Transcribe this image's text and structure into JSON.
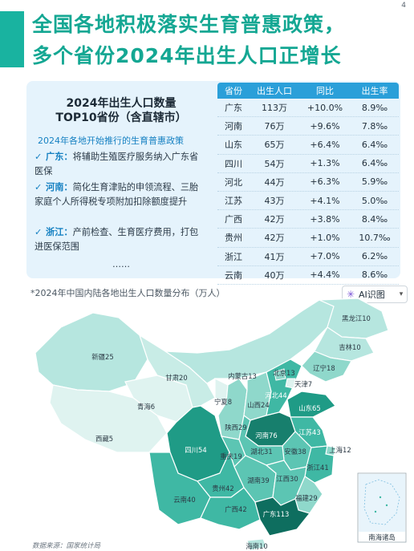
{
  "page_number": "4",
  "title": {
    "line1": "全国各地积极落实生育普惠政策，",
    "line2": "多个省份2024年出生人口正增长"
  },
  "panel": {
    "heading_line1": "2024年出生人口数量",
    "heading_line2": "TOP10省份（含直辖市）",
    "subheading": "2024年各地开始推行的生育普惠政策",
    "policies": [
      {
        "check": "✓",
        "province": "广东：",
        "text": "将辅助生殖医疗服务纳入广东省医保"
      },
      {
        "check": "✓",
        "province": "河南：",
        "text": "简化生育津贴的申领流程、三胎家庭个人所得税专项附加扣除额度提升"
      },
      {
        "check": "✓",
        "province": "浙江：",
        "text": "产前检查、生育医疗费用，打包进医保范围"
      }
    ],
    "ellipsis": "……"
  },
  "table": {
    "headers": [
      "省份",
      "出生人口",
      "同比",
      "出生率"
    ],
    "rows": [
      [
        "广东",
        "113万",
        "+10.0%",
        "8.9‰"
      ],
      [
        "河南",
        "76万",
        "+9.6%",
        "7.8‰"
      ],
      [
        "山东",
        "65万",
        "+6.4%",
        "6.4‰"
      ],
      [
        "四川",
        "54万",
        "+1.3%",
        "6.4‰"
      ],
      [
        "河北",
        "44万",
        "+6.3%",
        "5.9‰"
      ],
      [
        "江苏",
        "43万",
        "+4.1%",
        "5.0‰"
      ],
      [
        "广西",
        "42万",
        "+3.8%",
        "8.4‰"
      ],
      [
        "贵州",
        "42万",
        "+1.0%",
        "10.7‰"
      ],
      [
        "浙江",
        "41万",
        "+7.0%",
        "6.2‰"
      ],
      [
        "云南",
        "40万",
        "+4.4%",
        "8.6‰"
      ]
    ]
  },
  "map": {
    "note": "*2024年中国内陆各地出生人口数量分布（万人）",
    "inset_label": "南海诸岛",
    "labels": [
      "黑龙江10",
      "吉林10",
      "辽宁18",
      "新疆25",
      "甘肃20",
      "内蒙古13",
      "北京13",
      "天津7",
      "河北44",
      "青海6",
      "宁夏8",
      "山西24",
      "山东65",
      "陕西29",
      "河南76",
      "江苏43",
      "西藏5",
      "四川54",
      "重庆19",
      "湖北31",
      "安徽38",
      "上海12",
      "浙江41",
      "湖南39",
      "江西30",
      "贵州42",
      "福建29",
      "云南40",
      "广西42",
      "广东113",
      "海南10"
    ]
  },
  "ai_button": {
    "label": "AI识图",
    "icon": "sparkle-icon"
  },
  "source": "数据来源：国家统计局",
  "colors": {
    "accent": "#14a793",
    "table_header": "#2a9fd9",
    "panel_bg": "#e5f3fc"
  }
}
